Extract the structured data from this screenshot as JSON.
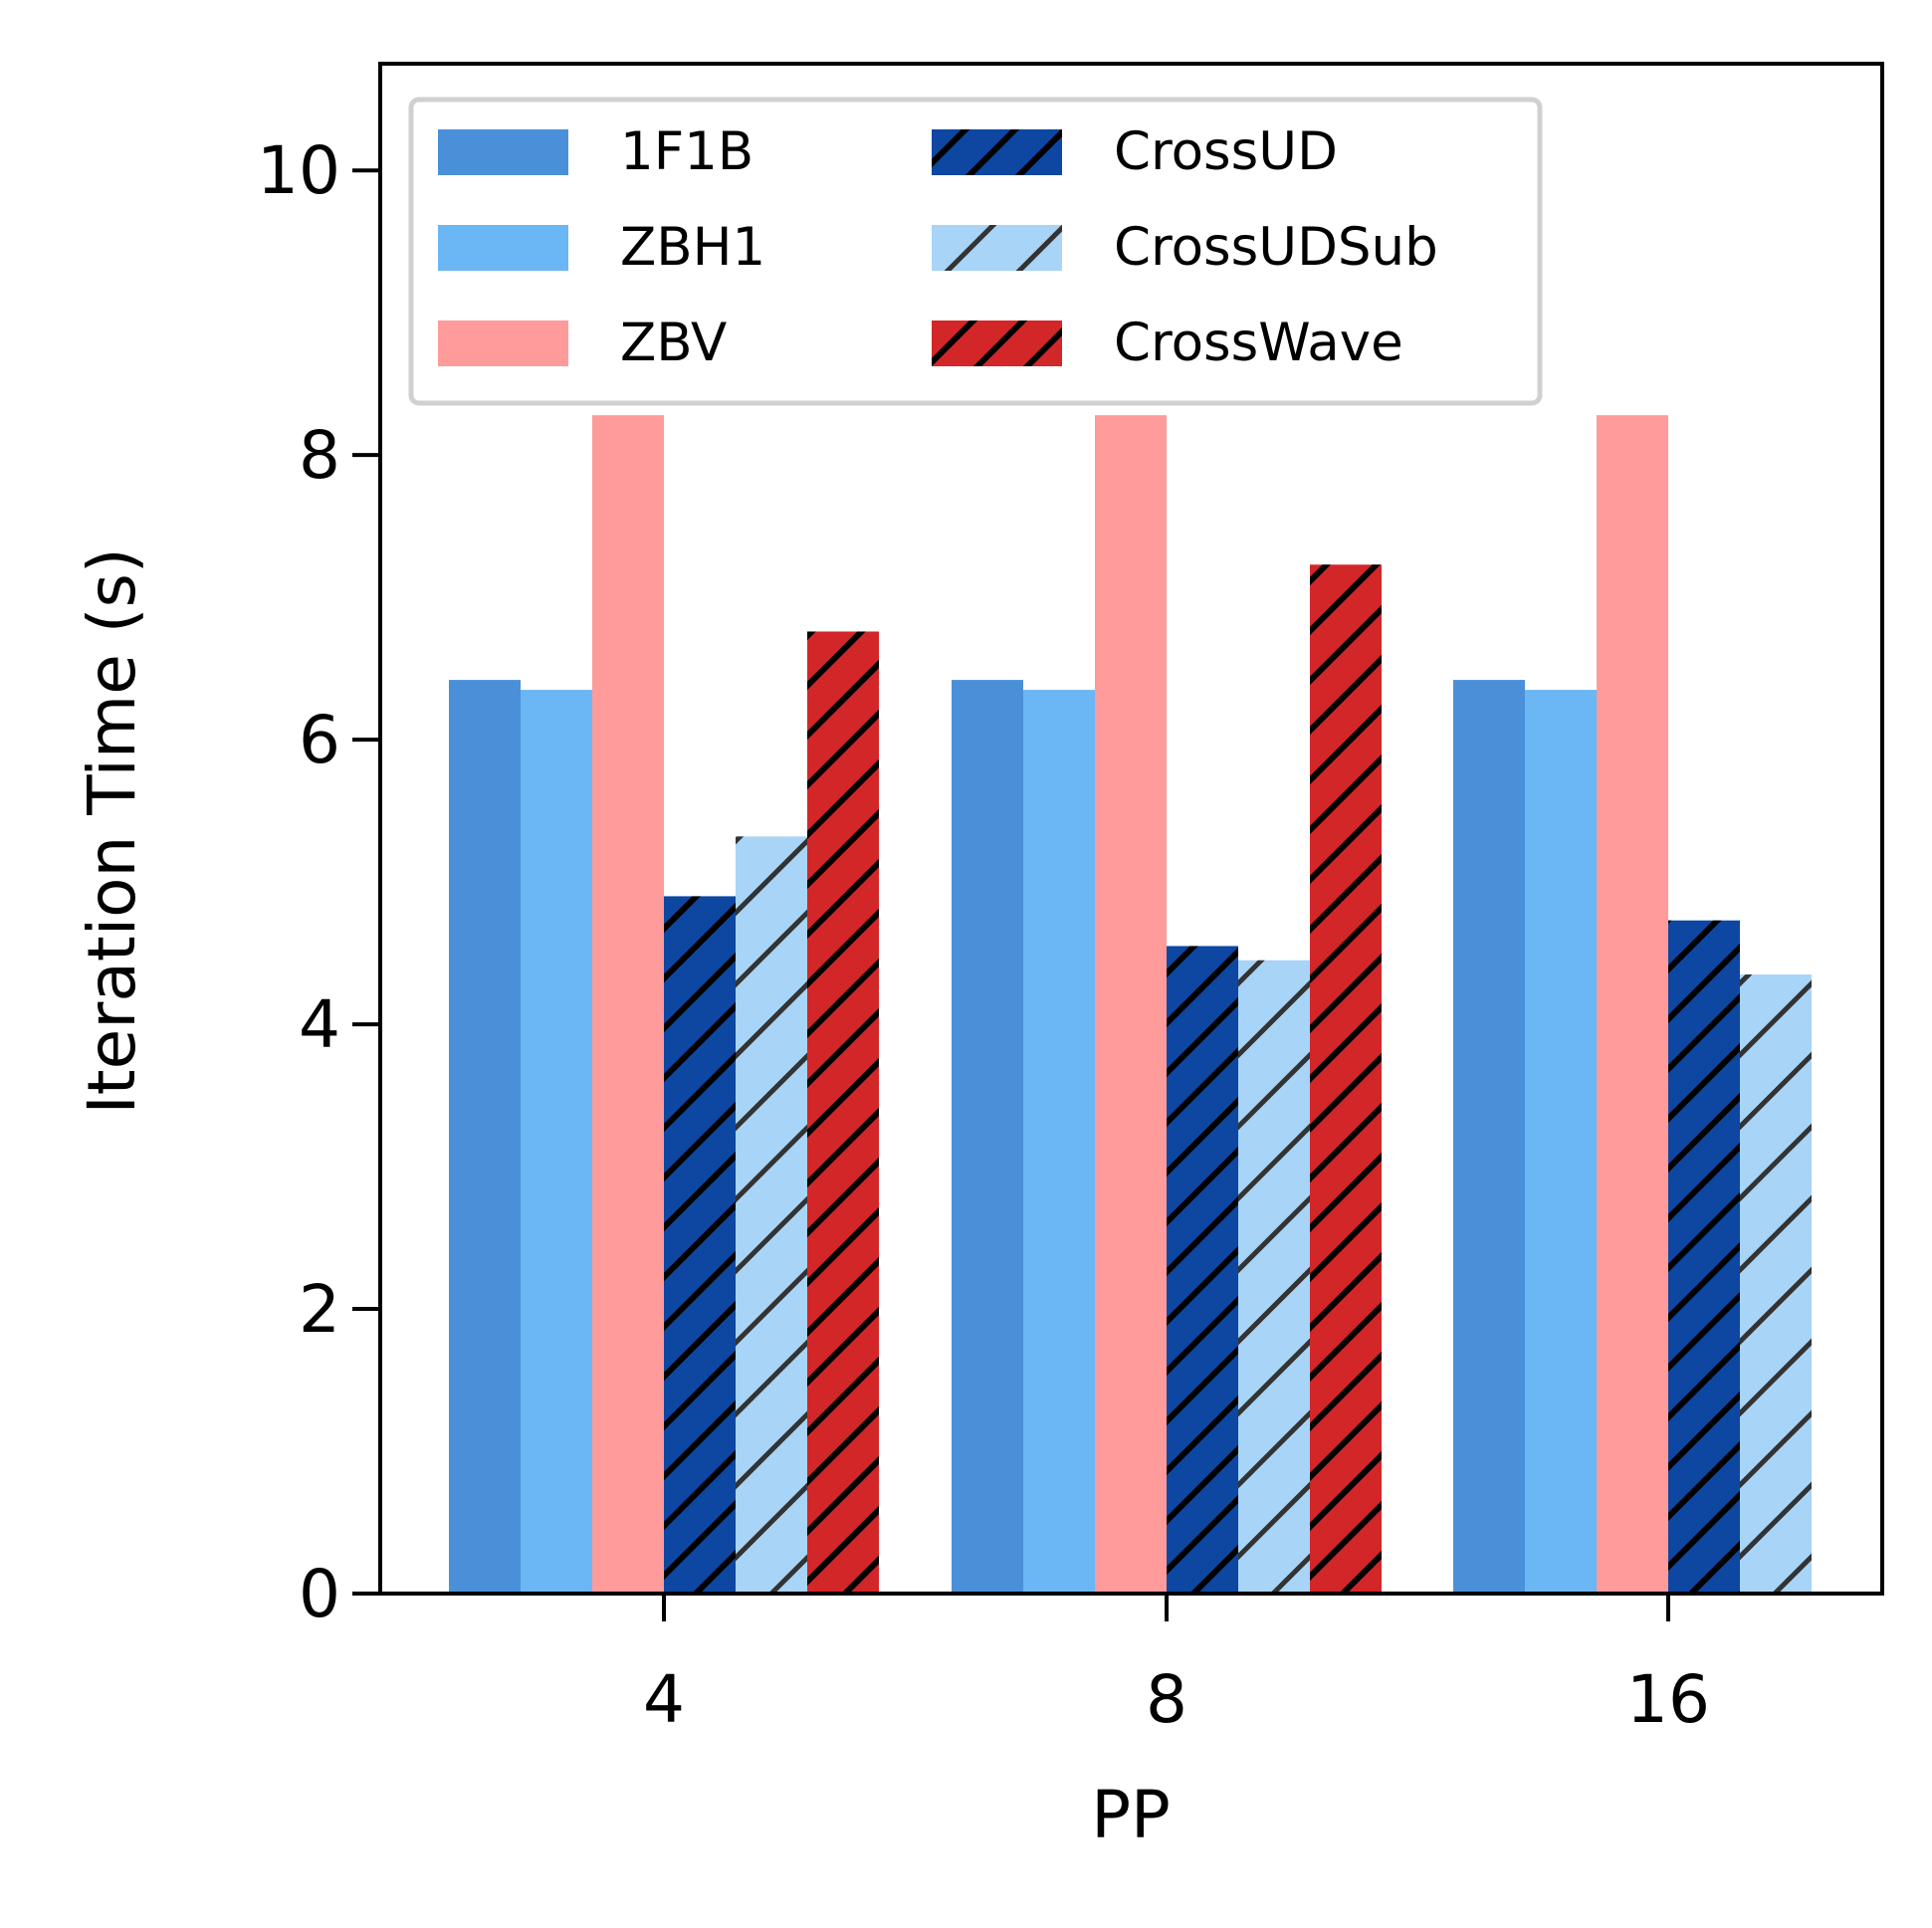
{
  "chart_data": {
    "type": "bar",
    "title": "",
    "xlabel": "PP",
    "ylabel": "Iteration Time (s)",
    "categories": [
      "4",
      "8",
      "16"
    ],
    "ylim": [
      0,
      10.75
    ],
    "yticks": [
      0,
      2,
      4,
      6,
      8,
      10
    ],
    "yticklabels": [
      "0",
      "2",
      "4",
      "6",
      "8",
      "10"
    ],
    "grid": false,
    "legend": {
      "location": "top-left",
      "columns": 2
    },
    "series": [
      {
        "name": "1F1B",
        "color": "#4a90d9",
        "hatch": false,
        "values": [
          6.42,
          6.42,
          6.42
        ]
      },
      {
        "name": "ZBH1",
        "color": "#6bb6f5",
        "hatch": false,
        "values": [
          6.35,
          6.35,
          6.35
        ]
      },
      {
        "name": "ZBV",
        "color": "#ff9b9b",
        "hatch": false,
        "clipped": true,
        "values": [
          8.28,
          8.28,
          8.28
        ]
      },
      {
        "name": "CrossUD",
        "color": "#0d47a1",
        "hatch": true,
        "hatch_color": "#000000",
        "values": [
          4.9,
          4.55,
          4.73
        ]
      },
      {
        "name": "CrossUDSub",
        "color": "#a8d4f7",
        "hatch": true,
        "hatch_color": "#333333",
        "values": [
          5.32,
          4.45,
          4.35
        ]
      },
      {
        "name": "CrossWave",
        "color": "#d32628",
        "hatch": true,
        "hatch_color": "#000000",
        "values": [
          6.76,
          7.23,
          null
        ]
      }
    ]
  }
}
